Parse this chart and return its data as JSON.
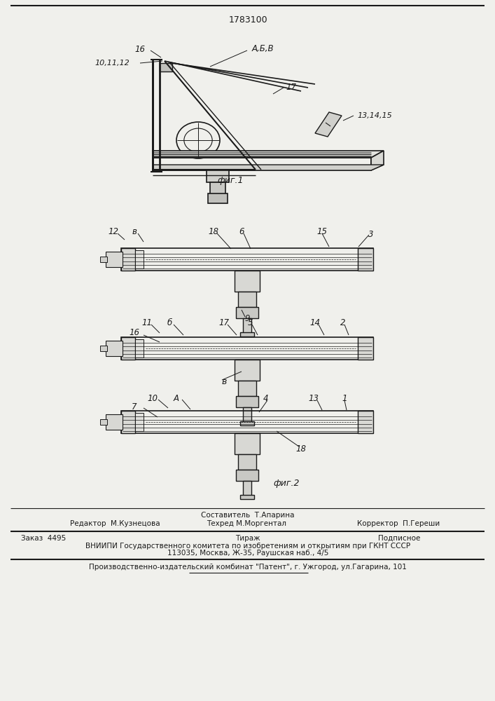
{
  "title": "1783100",
  "bg_color": "#f0f0ec",
  "line_color": "#1a1a1a",
  "fig1_caption": "фиг.1",
  "fig2_caption": "фиг.2",
  "footer_sestavitel": "Составитель  Т.Апарина",
  "footer_redaktor": "Редактор  М.Кузнецова",
  "footer_tehred": "Техред М.Моргентал",
  "footer_korrektor": "Корректор  П.Гереши",
  "footer_zakaz": "Заказ  4495",
  "footer_tirazh": "Тираж",
  "footer_podpisnoe": "Подписное",
  "footer_vniipи": "ВНИИПИ Государственного комитета по изобретениям и открытиям при ГКНТ СССР",
  "footer_addr": "113035, Москва, Ж-35, Раушская наб., 4/5",
  "footer_kombinat": "Производственно-издательский комбинат \"Патент\", г. Ужгород, ул.Гагарина, 101"
}
